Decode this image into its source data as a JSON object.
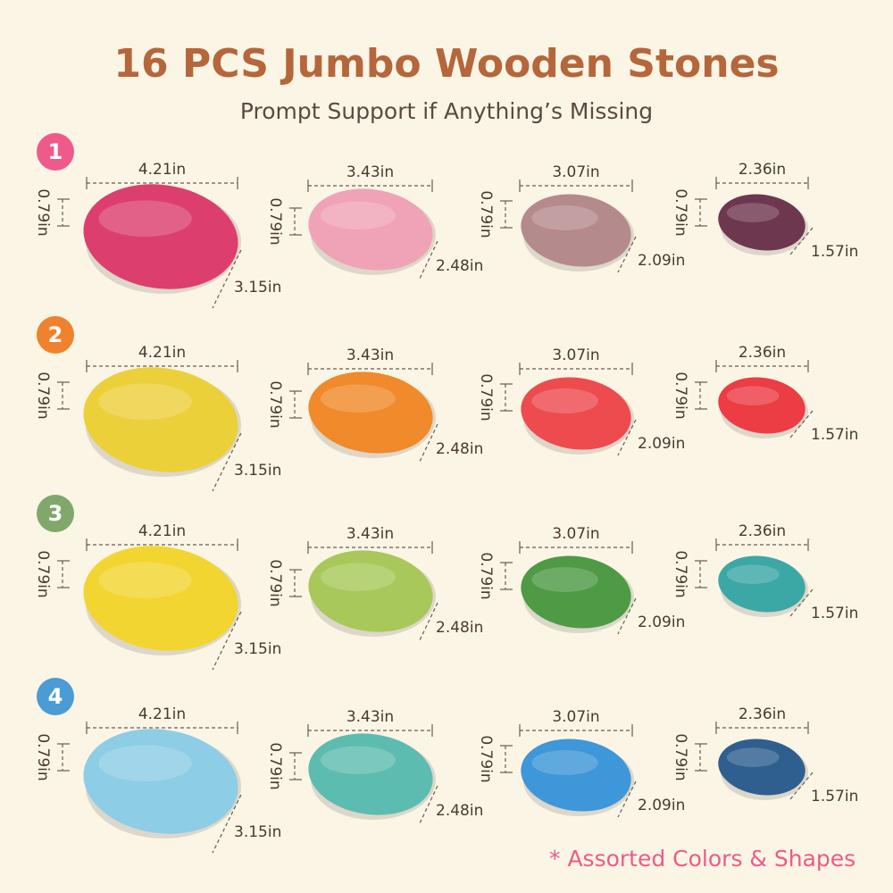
{
  "header": {
    "title": "16 PCS Jumbo Wooden Stones",
    "subtitle": "Prompt Support if Anything’s Missing"
  },
  "rows": [
    {
      "number": "1",
      "color": "#ef5a8c",
      "stones": [
        {
          "width": "4.21in",
          "height": "0.79in",
          "depth": "3.15in",
          "color": "#dc3f6e"
        },
        {
          "width": "3.43in",
          "height": "0.79in",
          "depth": "2.48in",
          "color": "#f0a3b6"
        },
        {
          "width": "3.07in",
          "height": "0.79in",
          "depth": "2.09in",
          "color": "#b58a8c"
        },
        {
          "width": "2.36in",
          "height": "0.79in",
          "depth": "1.57in",
          "color": "#6e3750"
        }
      ]
    },
    {
      "number": "2",
      "color": "#f0822e",
      "stones": [
        {
          "width": "4.21in",
          "height": "0.79in",
          "depth": "3.15in",
          "color": "#ecd03a"
        },
        {
          "width": "3.43in",
          "height": "0.79in",
          "depth": "2.48in",
          "color": "#f08a2a"
        },
        {
          "width": "3.07in",
          "height": "0.79in",
          "depth": "2.09in",
          "color": "#ee4b4f"
        },
        {
          "width": "2.36in",
          "height": "0.79in",
          "depth": "1.57in",
          "color": "#ec3c44"
        }
      ]
    },
    {
      "number": "3",
      "color": "#7fa86a",
      "stones": [
        {
          "width": "4.21in",
          "height": "0.79in",
          "depth": "3.15in",
          "color": "#f2d530"
        },
        {
          "width": "3.43in",
          "height": "0.79in",
          "depth": "2.48in",
          "color": "#a8c85a"
        },
        {
          "width": "3.07in",
          "height": "0.79in",
          "depth": "2.09in",
          "color": "#4e9a45"
        },
        {
          "width": "2.36in",
          "height": "0.79in",
          "depth": "1.57in",
          "color": "#3ba8a6"
        }
      ]
    },
    {
      "number": "4",
      "color": "#4b9bd5",
      "stones": [
        {
          "width": "4.21in",
          "height": "0.79in",
          "depth": "3.15in",
          "color": "#8dcde6"
        },
        {
          "width": "3.43in",
          "height": "0.79in",
          "depth": "2.48in",
          "color": "#5dbcb0"
        },
        {
          "width": "3.07in",
          "height": "0.79in",
          "depth": "2.09in",
          "color": "#3d97d8"
        },
        {
          "width": "2.36in",
          "height": "0.79in",
          "depth": "1.57in",
          "color": "#2f5f8f"
        }
      ]
    }
  ],
  "note": "*  Assorted Colors & Shapes"
}
